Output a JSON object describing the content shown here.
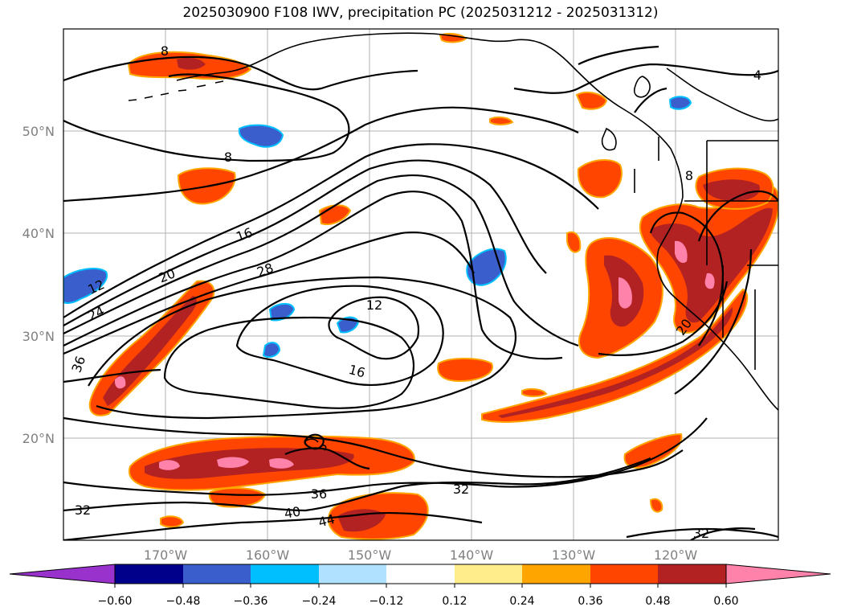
{
  "title": "2025030900 F108 IWV, precipitation PC (2025031212 - 2025031312)",
  "map": {
    "lat_labels": [
      "50°N",
      "40°N",
      "30°N",
      "20°N"
    ],
    "lon_labels": [
      "170°W",
      "160°W",
      "150°W",
      "140°W",
      "130°W",
      "120°W"
    ],
    "contour_labels": [
      "8",
      "8",
      "4",
      "16",
      "20",
      "12",
      "24",
      "28",
      "12",
      "16",
      "36",
      "20",
      "8",
      "36",
      "32",
      "40",
      "44",
      "32",
      "32"
    ]
  },
  "colorbar": {
    "ticks": [
      "−0.60",
      "−0.48",
      "−0.36",
      "−0.24",
      "−0.12",
      "0.12",
      "0.24",
      "0.36",
      "0.48",
      "0.60"
    ],
    "colors": [
      "#9932CC",
      "#00008B",
      "#3A5FCD",
      "#00BFFF",
      "#B0E2FF",
      "#FFFFFF",
      "#FFEC8B",
      "#FFA500",
      "#FF4500",
      "#B22222",
      "#FF82AB"
    ]
  },
  "colors": {
    "precip_pink": "#FF82AB",
    "precip_darkred": "#B22222",
    "precip_orange_red": "#FF4500",
    "precip_orange": "#FFA500",
    "precip_yellow": "#FFEC8B",
    "neg_blue": "#3A5FCD",
    "neg_light": "#00BFFF",
    "grid": "#b0b0b0"
  }
}
